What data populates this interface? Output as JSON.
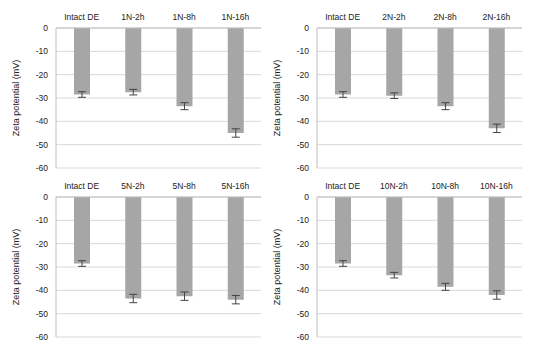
{
  "chart_data": [
    {
      "type": "bar",
      "categories": [
        "Intact DE",
        "1N-2h",
        "1N-8h",
        "1N-16h"
      ],
      "values": [
        -28.5,
        -27.5,
        -33.5,
        -45
      ],
      "errors": [
        1.2,
        1.2,
        1.5,
        1.8
      ],
      "color": "#a6a6a6",
      "y_label": "Zeta potential (mV)",
      "ylim": [
        -60,
        0
      ],
      "yticks": [
        -60,
        -50,
        -40,
        -30,
        -20,
        -10,
        0
      ],
      "grid": true
    },
    {
      "type": "bar",
      "categories": [
        "Intact DE",
        "2N-2h",
        "2N-8h",
        "2N-16h"
      ],
      "values": [
        -28.5,
        -29,
        -33.5,
        -43
      ],
      "errors": [
        1.2,
        1.2,
        1.5,
        1.8
      ],
      "color": "#a6a6a6",
      "y_label": "Zeta potential (mV)",
      "ylim": [
        -60,
        0
      ],
      "yticks": [
        -60,
        -50,
        -40,
        -30,
        -20,
        -10,
        0
      ],
      "grid": true
    },
    {
      "type": "bar",
      "categories": [
        "Intact DE",
        "5N-2h",
        "5N-8h",
        "5N-16h"
      ],
      "values": [
        -28.5,
        -43.5,
        -42.5,
        -44
      ],
      "errors": [
        1.2,
        1.8,
        1.8,
        1.8
      ],
      "color": "#a6a6a6",
      "y_label": "Zeta potential (mV)",
      "ylim": [
        -60,
        0
      ],
      "yticks": [
        -60,
        -50,
        -40,
        -30,
        -20,
        -10,
        0
      ],
      "grid": true
    },
    {
      "type": "bar",
      "categories": [
        "Intact DE",
        "10N-2h",
        "10N-8h",
        "10N-16h"
      ],
      "values": [
        -28.5,
        -33.5,
        -38.5,
        -42
      ],
      "errors": [
        1.2,
        1.2,
        1.5,
        1.8
      ],
      "color": "#a6a6a6",
      "y_label": "Zeta potential (mV)",
      "ylim": [
        -60,
        0
      ],
      "yticks": [
        -60,
        -50,
        -40,
        -30,
        -20,
        -10,
        0
      ],
      "grid": true
    }
  ]
}
